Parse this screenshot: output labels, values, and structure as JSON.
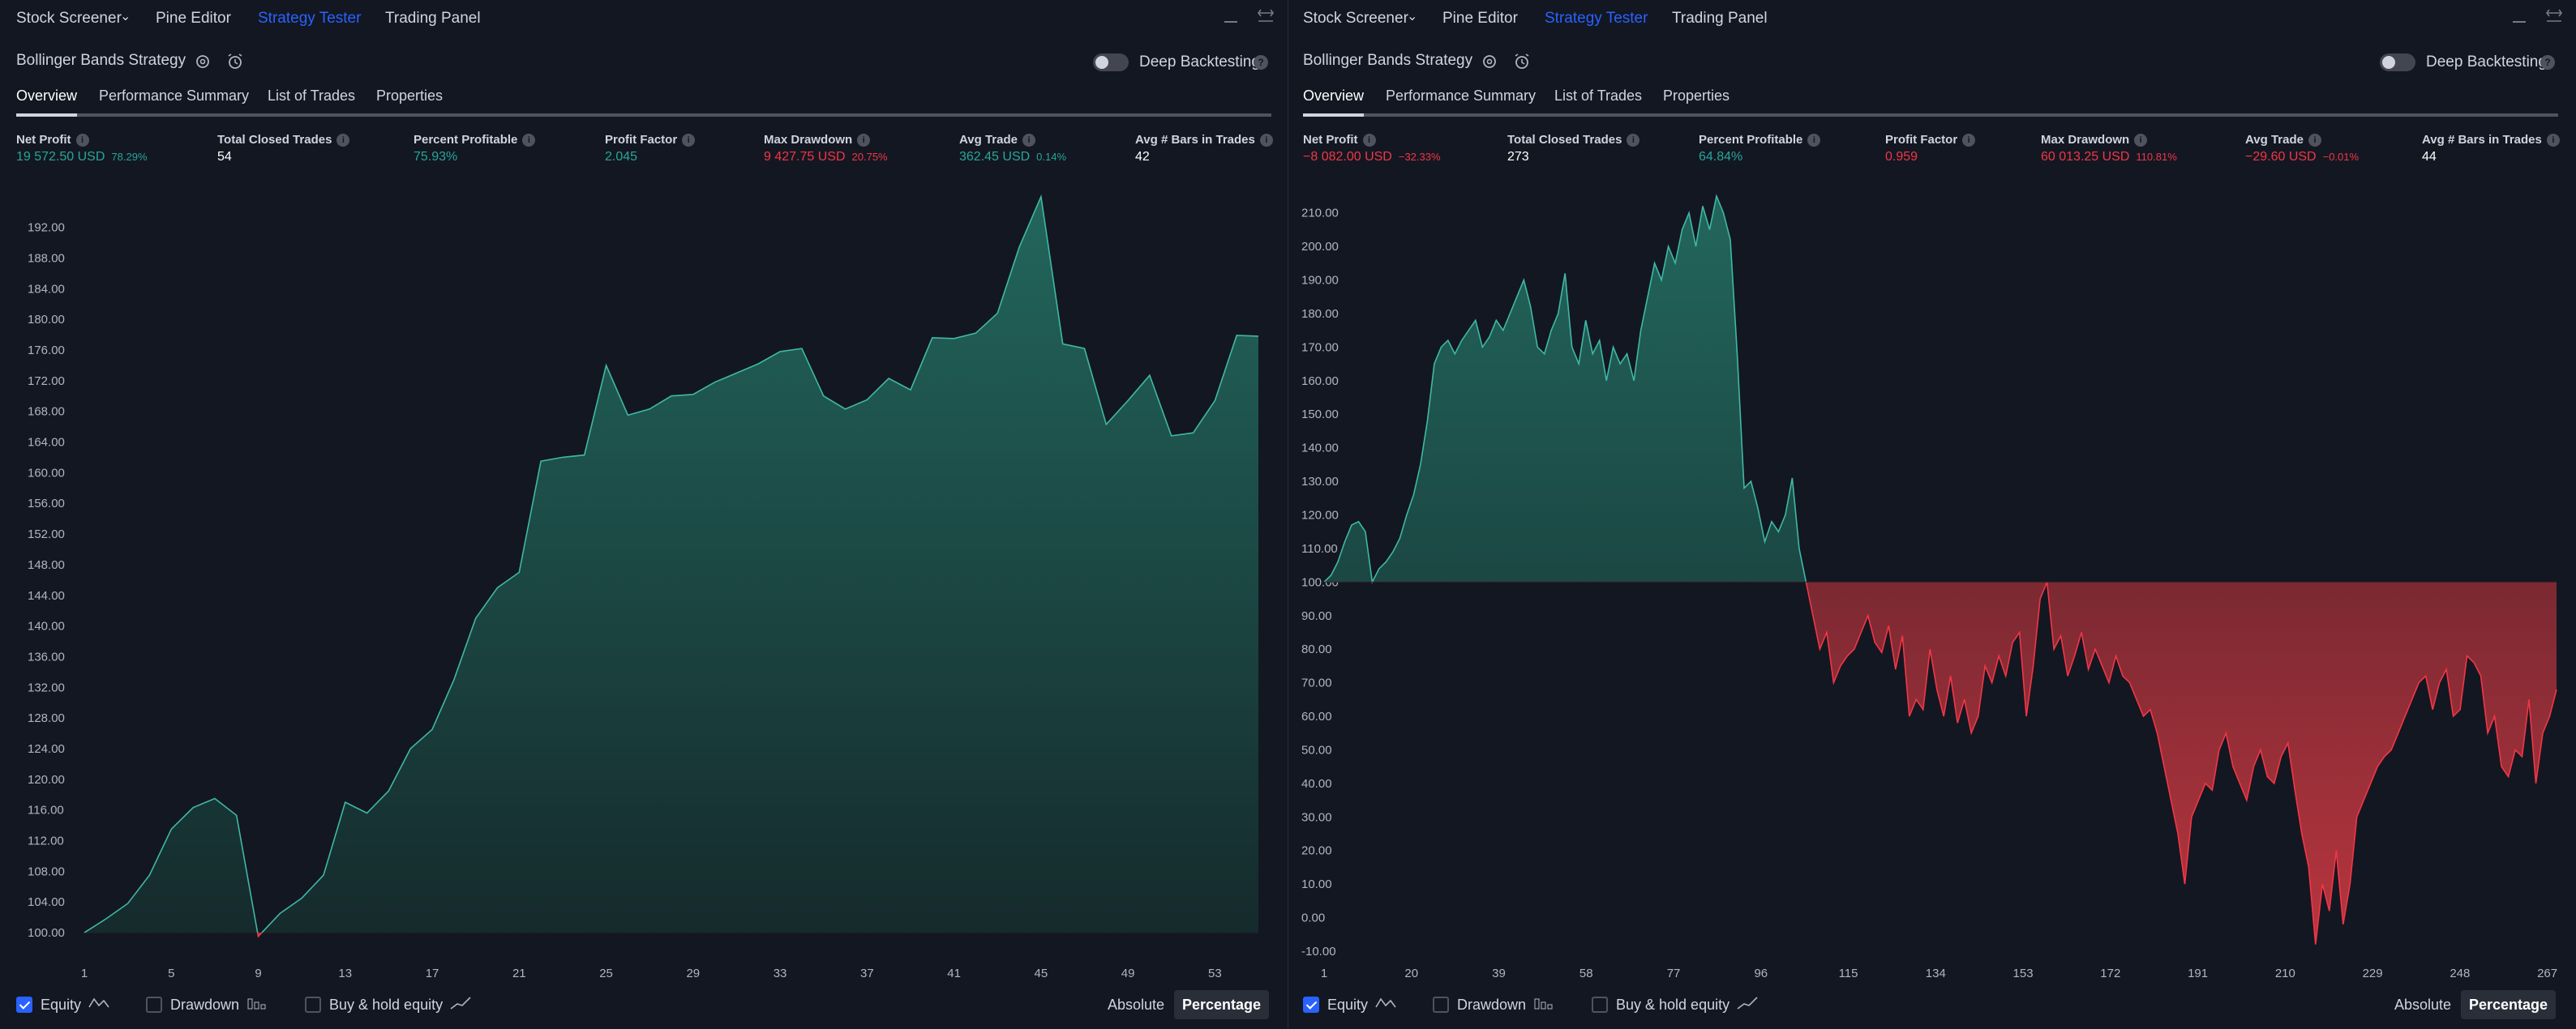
{
  "topbar": {
    "tabs": [
      "Stock Screener",
      "Pine Editor",
      "Strategy Tester",
      "Trading Panel"
    ],
    "active_tab": "Strategy Tester"
  },
  "colors": {
    "background": "#131722",
    "accent": "#2962ff",
    "profit": "#26a69a",
    "loss": "#f23645",
    "text": "#d1d4dc"
  },
  "footer": {
    "equity": "Equity",
    "drawdown": "Drawdown",
    "buy_hold": "Buy & hold equity",
    "absolute": "Absolute",
    "percentage": "Percentage"
  },
  "panels": [
    {
      "strategy_name": "Bollinger Bands Strategy",
      "deep_backtesting": "Deep Backtesting",
      "deep_backtesting_on": false,
      "subtabs": [
        "Overview",
        "Performance Summary",
        "List of Trades",
        "Properties"
      ],
      "active_subtab": "Overview",
      "metrics": [
        {
          "label": "Net Profit",
          "value": "19 572.50 USD",
          "pct": "78.29%",
          "color": "green"
        },
        {
          "label": "Total Closed Trades",
          "value": "54",
          "pct": "",
          "color": "white"
        },
        {
          "label": "Percent Profitable",
          "value": "75.93%",
          "pct": "",
          "color": "green"
        },
        {
          "label": "Profit Factor",
          "value": "2.045",
          "pct": "",
          "color": "green"
        },
        {
          "label": "Max Drawdown",
          "value": "9 427.75 USD",
          "pct": "20.75%",
          "color": "red"
        },
        {
          "label": "Avg Trade",
          "value": "362.45 USD",
          "pct": "0.14%",
          "color": "green"
        },
        {
          "label": "Avg # Bars in Trades",
          "value": "42",
          "pct": "",
          "color": "white"
        }
      ],
      "chart_data": {
        "type": "area",
        "series": [
          {
            "values": [
              100.0,
              101.8,
              103.8,
              107.5,
              113.5,
              116.3,
              117.5,
              115.3,
              99.5,
              102.5,
              104.5,
              107.5,
              117.0,
              115.6,
              118.5,
              124.0,
              126.5,
              133.0,
              141.0,
              145.0,
              147.0,
              161.5,
              162.0,
              162.3,
              174.0,
              167.5,
              168.3,
              170.0,
              170.2,
              171.8,
              173.0,
              174.2,
              175.8,
              176.2,
              170.0,
              168.3,
              169.5,
              172.3,
              170.8,
              177.6,
              177.5,
              178.2,
              180.8,
              189.4,
              196.0,
              176.8,
              176.2,
              166.3,
              169.4,
              172.7,
              164.8,
              165.2,
              169.4,
              177.9,
              177.8
            ]
          }
        ],
        "x_ticks": [
          "1",
          "5",
          "9",
          "13",
          "17",
          "21",
          "25",
          "29",
          "33",
          "37",
          "41",
          "45",
          "49",
          "53"
        ],
        "y_ticks": [
          "100.00",
          "104.00",
          "108.00",
          "112.00",
          "116.00",
          "120.00",
          "124.00",
          "128.00",
          "132.00",
          "136.00",
          "140.00",
          "144.00",
          "148.00",
          "152.00",
          "156.00",
          "160.00",
          "164.00",
          "168.00",
          "172.00",
          "176.00",
          "180.00",
          "184.00",
          "188.00",
          "192.00"
        ],
        "ylim": [
          98,
          196.5
        ],
        "baseline": 100
      }
    },
    {
      "strategy_name": "Bollinger Bands Strategy",
      "deep_backtesting": "Deep Backtesting",
      "deep_backtesting_on": false,
      "subtabs": [
        "Overview",
        "Performance Summary",
        "List of Trades",
        "Properties"
      ],
      "active_subtab": "Overview",
      "metrics": [
        {
          "label": "Net Profit",
          "value": "−8 082.00 USD",
          "pct": "−32.33%",
          "color": "red"
        },
        {
          "label": "Total Closed Trades",
          "value": "273",
          "pct": "",
          "color": "white"
        },
        {
          "label": "Percent Profitable",
          "value": "64.84%",
          "pct": "",
          "color": "green"
        },
        {
          "label": "Profit Factor",
          "value": "0.959",
          "pct": "",
          "color": "red"
        },
        {
          "label": "Max Drawdown",
          "value": "60 013.25 USD",
          "pct": "110.81%",
          "color": "red"
        },
        {
          "label": "Avg Trade",
          "value": "−29.60 USD",
          "pct": "−0.01%",
          "color": "red"
        },
        {
          "label": "Avg # Bars in Trades",
          "value": "44",
          "pct": "",
          "color": "white"
        }
      ],
      "chart_data": {
        "type": "area",
        "series": [
          {
            "values": [
              100,
              102,
              106,
              112,
              117,
              118,
              115,
              100,
              104,
              106,
              109,
              113,
              120,
              126,
              135,
              148,
              165,
              170,
              172,
              168,
              172,
              175,
              178,
              170,
              173,
              178,
              175,
              180,
              185,
              190,
              182,
              170,
              168,
              175,
              180,
              192,
              170,
              165,
              178,
              168,
              172,
              160,
              170,
              165,
              168,
              160,
              175,
              185,
              195,
              190,
              200,
              195,
              205,
              210,
              200,
              212,
              205,
              215,
              210,
              202,
              168,
              128,
              130,
              122,
              112,
              118,
              115,
              120,
              131,
              110,
              100,
              90,
              80,
              85,
              70,
              75,
              78,
              80,
              85,
              90,
              82,
              79,
              87,
              74,
              84,
              60,
              65,
              62,
              80,
              68,
              60,
              72,
              58,
              65,
              55,
              60,
              75,
              70,
              78,
              72,
              82,
              85,
              60,
              75,
              95,
              100,
              80,
              84,
              72,
              78,
              85,
              74,
              80,
              75,
              70,
              78,
              72,
              70,
              65,
              60,
              62,
              55,
              45,
              35,
              25,
              10,
              30,
              35,
              40,
              38,
              50,
              55,
              45,
              40,
              35,
              45,
              50,
              42,
              40,
              48,
              52,
              38,
              25,
              15,
              -8,
              10,
              2,
              20,
              -2,
              10,
              30,
              35,
              40,
              45,
              48,
              50,
              55,
              60,
              65,
              70,
              72,
              62,
              70,
              74,
              60,
              62,
              78,
              76,
              72,
              55,
              60,
              45,
              42,
              50,
              48,
              65,
              40,
              55,
              60,
              68
            ]
          }
        ],
        "x_ticks": [
          "1",
          "20",
          "39",
          "58",
          "77",
          "96",
          "115",
          "134",
          "153",
          "172",
          "191",
          "210",
          "229",
          "248",
          "267"
        ],
        "y_ticks": [
          "-10.00",
          "0.00",
          "10.00",
          "20.00",
          "30.00",
          "40.00",
          "50.00",
          "60.00",
          "70.00",
          "80.00",
          "90.00",
          "100.00",
          "110.00",
          "120.00",
          "130.00",
          "140.00",
          "150.00",
          "160.00",
          "170.00",
          "180.00",
          "190.00",
          "200.00",
          "210.00"
        ],
        "ylim": [
          -10,
          215
        ],
        "baseline": 100
      }
    }
  ]
}
